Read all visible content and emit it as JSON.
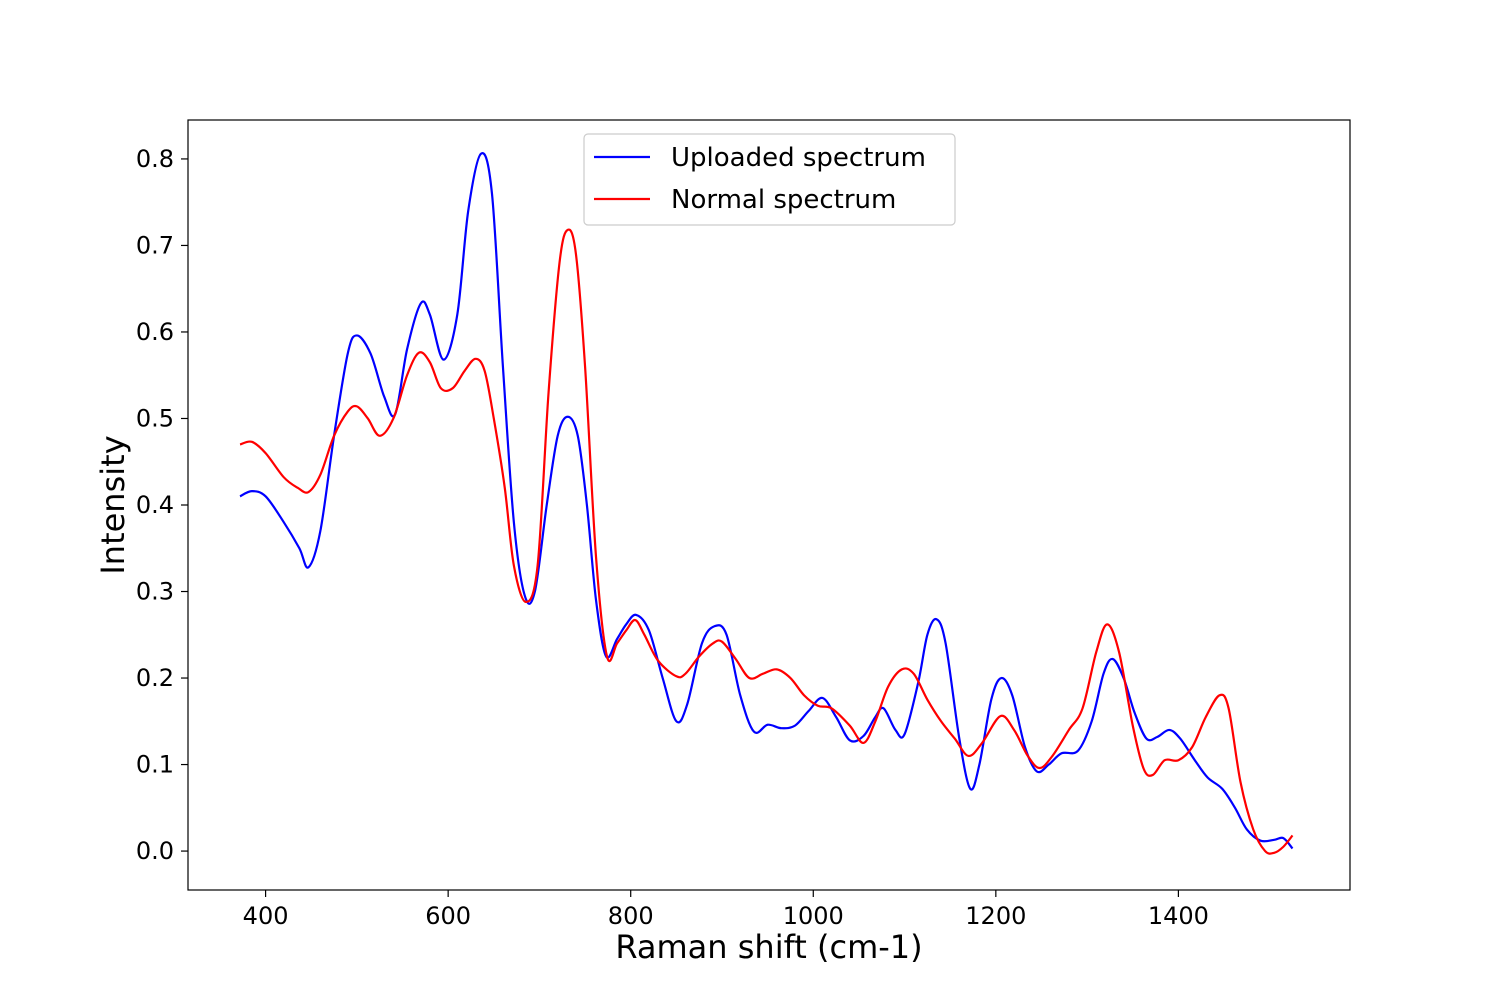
{
  "chart_data": {
    "type": "line",
    "xlabel": "Raman shift (cm-1)",
    "ylabel": "Intensity",
    "xlim": [
      315,
      1588
    ],
    "ylim": [
      -0.045,
      0.845
    ],
    "xticks": [
      400,
      600,
      800,
      1000,
      1200,
      1400
    ],
    "yticks": [
      0.0,
      0.1,
      0.2,
      0.3,
      0.4,
      0.5,
      0.6,
      0.7,
      0.8
    ],
    "xtick_labels": [
      "400",
      "600",
      "800",
      "1000",
      "1200",
      "1400"
    ],
    "ytick_labels": [
      "0.0",
      "0.1",
      "0.2",
      "0.3",
      "0.4",
      "0.5",
      "0.6",
      "0.7",
      "0.8"
    ],
    "grid": false,
    "legend_position": "top-center",
    "series": [
      {
        "name": "Uploaded spectrum",
        "color": "#0000ff",
        "points": [
          [
            372,
            0.41
          ],
          [
            385,
            0.416
          ],
          [
            400,
            0.41
          ],
          [
            420,
            0.38
          ],
          [
            437,
            0.35
          ],
          [
            447,
            0.328
          ],
          [
            460,
            0.37
          ],
          [
            475,
            0.48
          ],
          [
            490,
            0.575
          ],
          [
            500,
            0.596
          ],
          [
            515,
            0.575
          ],
          [
            530,
            0.525
          ],
          [
            542,
            0.505
          ],
          [
            555,
            0.58
          ],
          [
            570,
            0.633
          ],
          [
            580,
            0.62
          ],
          [
            595,
            0.568
          ],
          [
            610,
            0.62
          ],
          [
            622,
            0.74
          ],
          [
            636,
            0.806
          ],
          [
            648,
            0.76
          ],
          [
            660,
            0.56
          ],
          [
            672,
            0.38
          ],
          [
            684,
            0.295
          ],
          [
            695,
            0.3
          ],
          [
            708,
            0.4
          ],
          [
            720,
            0.48
          ],
          [
            731,
            0.502
          ],
          [
            742,
            0.48
          ],
          [
            752,
            0.4
          ],
          [
            762,
            0.29
          ],
          [
            773,
            0.225
          ],
          [
            785,
            0.245
          ],
          [
            795,
            0.262
          ],
          [
            806,
            0.273
          ],
          [
            820,
            0.255
          ],
          [
            835,
            0.2
          ],
          [
            850,
            0.15
          ],
          [
            862,
            0.17
          ],
          [
            878,
            0.24
          ],
          [
            892,
            0.26
          ],
          [
            905,
            0.25
          ],
          [
            920,
            0.18
          ],
          [
            935,
            0.138
          ],
          [
            950,
            0.146
          ],
          [
            965,
            0.142
          ],
          [
            980,
            0.145
          ],
          [
            995,
            0.162
          ],
          [
            1010,
            0.177
          ],
          [
            1025,
            0.155
          ],
          [
            1040,
            0.128
          ],
          [
            1055,
            0.133
          ],
          [
            1068,
            0.155
          ],
          [
            1077,
            0.165
          ],
          [
            1090,
            0.14
          ],
          [
            1100,
            0.135
          ],
          [
            1115,
            0.195
          ],
          [
            1125,
            0.25
          ],
          [
            1135,
            0.268
          ],
          [
            1145,
            0.24
          ],
          [
            1160,
            0.13
          ],
          [
            1172,
            0.072
          ],
          [
            1182,
            0.1
          ],
          [
            1195,
            0.175
          ],
          [
            1206,
            0.2
          ],
          [
            1218,
            0.18
          ],
          [
            1232,
            0.12
          ],
          [
            1245,
            0.092
          ],
          [
            1258,
            0.1
          ],
          [
            1272,
            0.113
          ],
          [
            1290,
            0.116
          ],
          [
            1305,
            0.15
          ],
          [
            1318,
            0.205
          ],
          [
            1328,
            0.222
          ],
          [
            1340,
            0.2
          ],
          [
            1352,
            0.16
          ],
          [
            1365,
            0.13
          ],
          [
            1377,
            0.132
          ],
          [
            1390,
            0.14
          ],
          [
            1402,
            0.13
          ],
          [
            1418,
            0.105
          ],
          [
            1432,
            0.085
          ],
          [
            1448,
            0.072
          ],
          [
            1462,
            0.05
          ],
          [
            1475,
            0.025
          ],
          [
            1490,
            0.012
          ],
          [
            1505,
            0.013
          ],
          [
            1515,
            0.015
          ],
          [
            1525,
            0.003
          ]
        ]
      },
      {
        "name": "Normal spectrum",
        "color": "#ff0000",
        "points": [
          [
            372,
            0.47
          ],
          [
            385,
            0.473
          ],
          [
            400,
            0.46
          ],
          [
            420,
            0.432
          ],
          [
            435,
            0.42
          ],
          [
            447,
            0.415
          ],
          [
            460,
            0.435
          ],
          [
            475,
            0.48
          ],
          [
            490,
            0.508
          ],
          [
            500,
            0.514
          ],
          [
            512,
            0.5
          ],
          [
            525,
            0.48
          ],
          [
            540,
            0.5
          ],
          [
            555,
            0.55
          ],
          [
            568,
            0.576
          ],
          [
            580,
            0.565
          ],
          [
            592,
            0.535
          ],
          [
            605,
            0.535
          ],
          [
            618,
            0.555
          ],
          [
            630,
            0.569
          ],
          [
            640,
            0.555
          ],
          [
            650,
            0.5
          ],
          [
            662,
            0.42
          ],
          [
            672,
            0.33
          ],
          [
            685,
            0.288
          ],
          [
            698,
            0.33
          ],
          [
            710,
            0.53
          ],
          [
            722,
            0.68
          ],
          [
            731,
            0.718
          ],
          [
            740,
            0.69
          ],
          [
            750,
            0.56
          ],
          [
            762,
            0.34
          ],
          [
            774,
            0.225
          ],
          [
            785,
            0.24
          ],
          [
            795,
            0.255
          ],
          [
            805,
            0.267
          ],
          [
            815,
            0.25
          ],
          [
            830,
            0.22
          ],
          [
            850,
            0.202
          ],
          [
            860,
            0.205
          ],
          [
            875,
            0.225
          ],
          [
            890,
            0.24
          ],
          [
            900,
            0.242
          ],
          [
            915,
            0.222
          ],
          [
            930,
            0.2
          ],
          [
            945,
            0.205
          ],
          [
            960,
            0.21
          ],
          [
            975,
            0.2
          ],
          [
            990,
            0.18
          ],
          [
            1005,
            0.168
          ],
          [
            1020,
            0.165
          ],
          [
            1040,
            0.145
          ],
          [
            1055,
            0.125
          ],
          [
            1068,
            0.15
          ],
          [
            1082,
            0.19
          ],
          [
            1097,
            0.21
          ],
          [
            1110,
            0.205
          ],
          [
            1125,
            0.175
          ],
          [
            1140,
            0.15
          ],
          [
            1155,
            0.13
          ],
          [
            1170,
            0.11
          ],
          [
            1185,
            0.125
          ],
          [
            1205,
            0.156
          ],
          [
            1220,
            0.14
          ],
          [
            1235,
            0.11
          ],
          [
            1248,
            0.096
          ],
          [
            1262,
            0.11
          ],
          [
            1280,
            0.14
          ],
          [
            1295,
            0.165
          ],
          [
            1310,
            0.23
          ],
          [
            1322,
            0.262
          ],
          [
            1335,
            0.23
          ],
          [
            1350,
            0.145
          ],
          [
            1362,
            0.095
          ],
          [
            1372,
            0.088
          ],
          [
            1385,
            0.105
          ],
          [
            1400,
            0.105
          ],
          [
            1415,
            0.12
          ],
          [
            1430,
            0.155
          ],
          [
            1445,
            0.18
          ],
          [
            1455,
            0.165
          ],
          [
            1468,
            0.08
          ],
          [
            1482,
            0.025
          ],
          [
            1495,
            0.0
          ],
          [
            1505,
            -0.002
          ],
          [
            1515,
            0.005
          ],
          [
            1525,
            0.018
          ]
        ]
      }
    ]
  }
}
